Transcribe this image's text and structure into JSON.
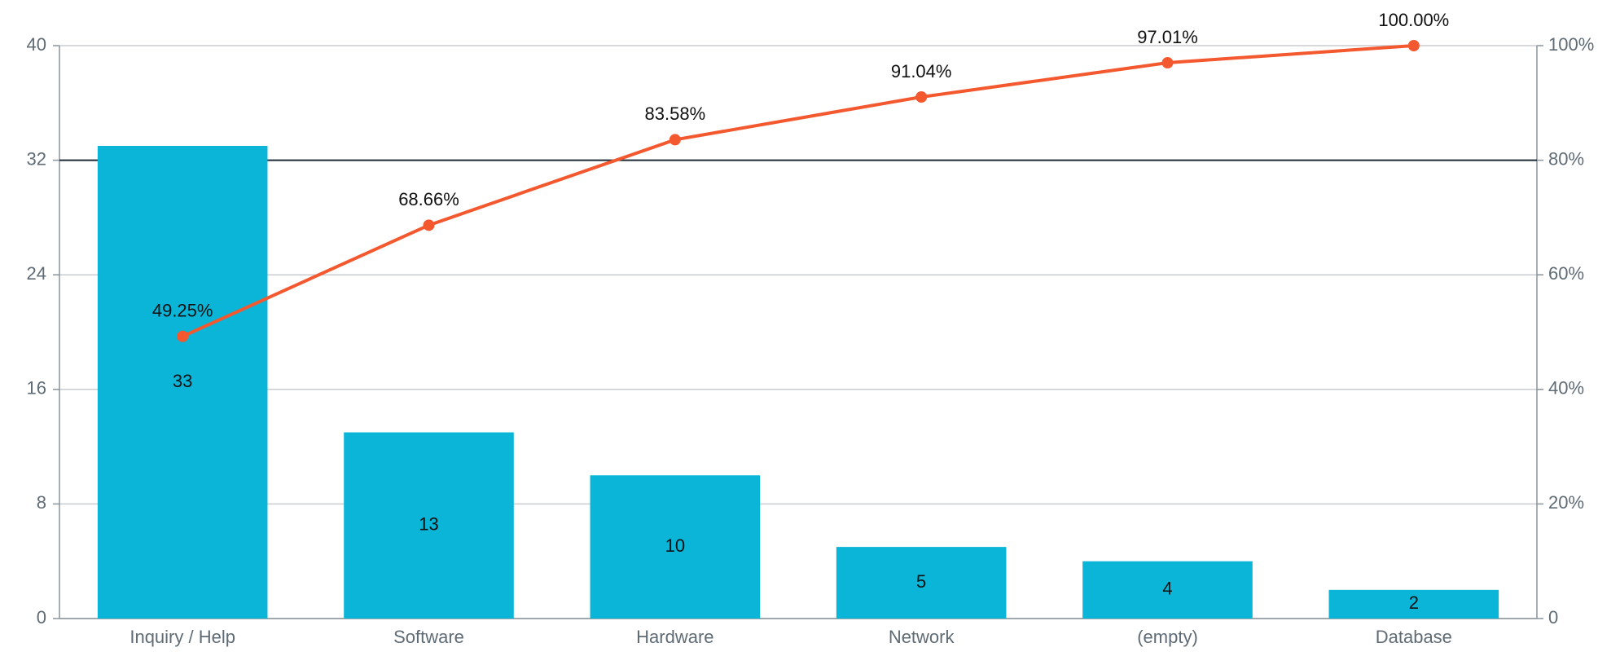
{
  "chart_data": {
    "type": "pareto",
    "categories": [
      "Inquiry / Help",
      "Software",
      "Hardware",
      "Network",
      "(empty)",
      "Database"
    ],
    "series": [
      {
        "type": "bar",
        "color": "#0bb5d8",
        "values": [
          33,
          13,
          10,
          5,
          4,
          2
        ]
      },
      {
        "type": "line",
        "axis": "y2",
        "color": "#f4582f",
        "values": [
          49.25,
          68.66,
          83.58,
          91.04,
          97.01,
          100.0
        ],
        "value_labels": [
          "49.25%",
          "68.66%",
          "83.58%",
          "91.04%",
          "97.01%",
          "100.00%"
        ]
      }
    ],
    "ylim": [
      0,
      40
    ],
    "yticks": [
      0,
      8,
      16,
      24,
      32,
      40
    ],
    "y2lim": [
      0,
      100
    ],
    "y2ticks": [
      {
        "value": 0,
        "label": "0"
      },
      {
        "value": 20,
        "label": "20%"
      },
      {
        "value": 40,
        "label": "40%"
      },
      {
        "value": 60,
        "label": "60%"
      },
      {
        "value": 80,
        "label": "80%"
      },
      {
        "value": 100,
        "label": "100%"
      }
    ],
    "reference_line": {
      "axis": "y2",
      "value": 80,
      "color": "#1e2a36"
    },
    "grid": true
  }
}
